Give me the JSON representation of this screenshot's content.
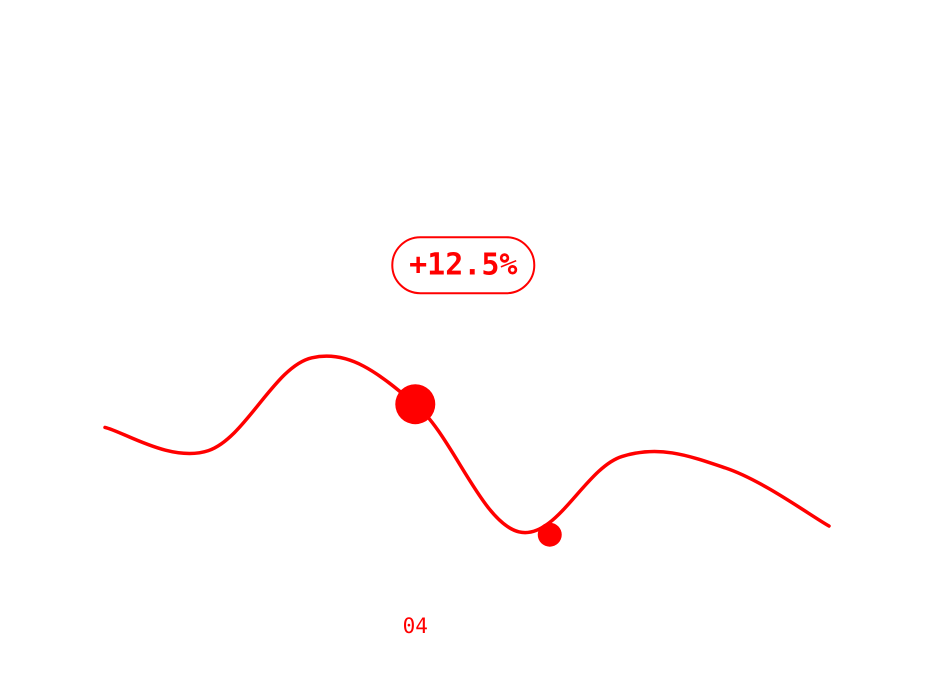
{
  "colors": {
    "accent": "#ff0000",
    "background": "#ffffff"
  },
  "chart_data": {
    "type": "line",
    "title": "",
    "xlabel": "",
    "ylabel": "",
    "x": [
      1,
      2,
      3,
      4,
      5,
      6,
      7,
      8
    ],
    "values": [
      44,
      36,
      68,
      52,
      8,
      34,
      30,
      10
    ],
    "ylim": [
      0,
      100
    ],
    "grid": false,
    "legend": "none",
    "highlight": {
      "x": 4,
      "tick_label": "04",
      "annotation": "+12.5%"
    },
    "secondary_marker": {
      "x_index_between": [
        5,
        6
      ],
      "x": 5.3,
      "value": 7
    }
  }
}
